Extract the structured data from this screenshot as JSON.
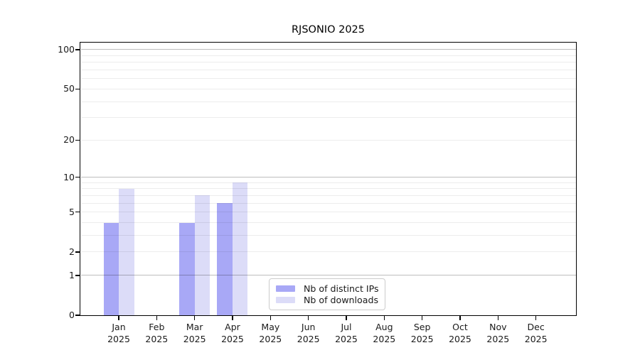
{
  "title": "RJSONIO 2025",
  "chart_data": {
    "type": "bar",
    "title": "RJSONIO 2025",
    "categories": [
      "Jan",
      "Feb",
      "Mar",
      "Apr",
      "May",
      "Jun",
      "Jul",
      "Aug",
      "Sep",
      "Oct",
      "Nov",
      "Dec"
    ],
    "category_year_line": "2025",
    "series": [
      {
        "name": "Nb of distinct IPs",
        "color": "#a8a8f6",
        "values": [
          4,
          0,
          4,
          6,
          0,
          0,
          0,
          0,
          0,
          0,
          0,
          0
        ]
      },
      {
        "name": "Nb of downloads",
        "color": "#dcdcf8",
        "values": [
          8,
          0,
          7,
          9,
          0,
          0,
          0,
          0,
          0,
          0,
          0,
          0
        ]
      }
    ],
    "xlabel": "",
    "ylabel": "",
    "yscale": "log1p",
    "ylim": [
      0,
      114
    ],
    "yticks": [
      0,
      1,
      2,
      5,
      10,
      20,
      50,
      100
    ],
    "grid": "on",
    "grid_major_values": [
      1,
      10,
      100
    ],
    "grid_minor_values": [
      2,
      3,
      4,
      5,
      6,
      7,
      8,
      9,
      20,
      30,
      40,
      50,
      60,
      70,
      80,
      90
    ],
    "legend_position": "inside-bottom-center",
    "legend_entries": [
      "Nb of distinct IPs",
      "Nb of downloads"
    ]
  },
  "colors": {
    "background": "#ffffff",
    "axis_box": "#000000",
    "grid_major": "#bdbdbd",
    "grid_minor": "#ececec",
    "tick_text": "#1a1a1a",
    "legend_border": "#cccccc",
    "bar_distinct_ips": "#a8a8f6",
    "bar_downloads": "#dcdcf8"
  }
}
